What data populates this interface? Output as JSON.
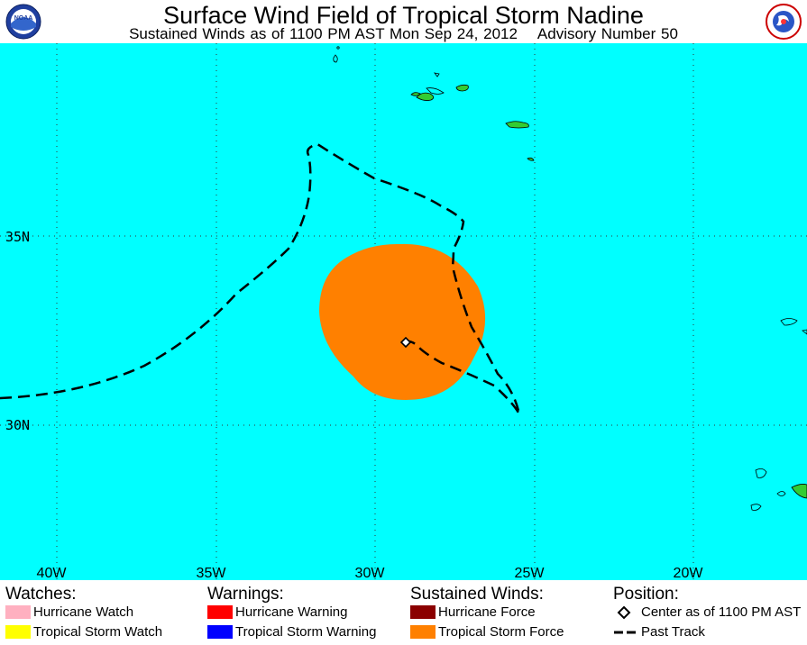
{
  "title": "Surface Wind Field of Tropical Storm Nadine",
  "subtitle": "Sustained Winds as of 1100 PM AST Mon Sep 24, 2012    Advisory Number 50",
  "logos": {
    "left": "NOAA",
    "right": "National Weather Service"
  },
  "map": {
    "ocean_color": "#00ffff",
    "land_color": "#33cc33",
    "wind_field_color": "#ff8000",
    "lat_labels": [
      "35N",
      "30N"
    ],
    "lon_labels": [
      "40W",
      "35W",
      "30W",
      "25W",
      "20W"
    ]
  },
  "legend": {
    "watches": {
      "header": "Watches:",
      "items": [
        {
          "label": "Hurricane Watch",
          "color": "#ffb0c0"
        },
        {
          "label": "Tropical Storm Watch",
          "color": "#ffff00"
        }
      ]
    },
    "warnings": {
      "header": "Warnings:",
      "items": [
        {
          "label": "Hurricane Warning",
          "color": "#ff0000"
        },
        {
          "label": "Tropical Storm Warning",
          "color": "#0000ff"
        }
      ]
    },
    "winds": {
      "header": "Sustained Winds:",
      "items": [
        {
          "label": "Hurricane Force",
          "color": "#8b0000"
        },
        {
          "label": "Tropical Storm Force",
          "color": "#ff8000"
        }
      ]
    },
    "position": {
      "header": "Position:",
      "items": [
        {
          "label": "Center as of 1100 PM AST",
          "icon": "diamond-icon"
        },
        {
          "label": "Past Track",
          "icon": "dashed-line-icon"
        }
      ]
    }
  }
}
